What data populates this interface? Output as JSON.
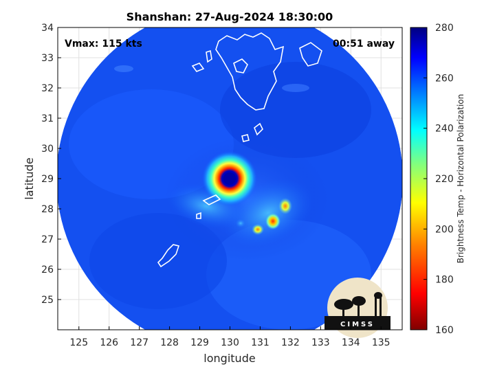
{
  "title": "Shanshan: 27-Aug-2024 18:30:00",
  "vmax_label": "Vmax: 115 kts",
  "time_label": "00:51 away",
  "xlabel": "longitude",
  "ylabel": "latitude",
  "x_ticks": [
    "125",
    "126",
    "127",
    "128",
    "129",
    "130",
    "131",
    "132",
    "133",
    "134",
    "135"
  ],
  "y_ticks": [
    "25",
    "26",
    "27",
    "28",
    "29",
    "30",
    "31",
    "32",
    "33",
    "34"
  ],
  "colorbar": {
    "label": "Brightness Temp - Horizontal Polarization",
    "ticks": [
      "160",
      "180",
      "200",
      "220",
      "240",
      "260",
      "280"
    ],
    "range": [
      160,
      280
    ],
    "colors": [
      "#800000",
      "#ff0000",
      "#ff8000",
      "#ffff00",
      "#80ff80",
      "#00ffff",
      "#0080ff",
      "#0000ff",
      "#000080"
    ]
  },
  "logo_text": "CIMSS",
  "chart_data": {
    "type": "heatmap",
    "title": "Shanshan: 27-Aug-2024 18:30:00",
    "xlabel": "longitude",
    "ylabel": "latitude",
    "xlim": [
      124.3,
      135.7
    ],
    "ylim": [
      24.0,
      34.0
    ],
    "grid": true,
    "storm_center": {
      "lon": 130.05,
      "lat": 28.95
    },
    "colorbar_range": [
      160,
      280
    ]
  }
}
